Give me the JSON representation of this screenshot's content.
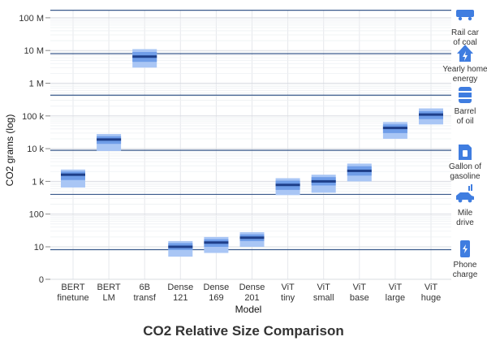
{
  "chart_data": {
    "type": "box",
    "title": "CO2 Relative Size Comparison",
    "xlabel": "Model",
    "ylabel": "CO2 grams (log)",
    "yscale": "log",
    "ylim": [
      0,
      200000000
    ],
    "yticks": [
      {
        "value": 0,
        "label": "0"
      },
      {
        "value": 10,
        "label": "10"
      },
      {
        "value": 100,
        "label": "100"
      },
      {
        "value": 1000,
        "label": "1 k"
      },
      {
        "value": 10000,
        "label": "10 k"
      },
      {
        "value": 100000,
        "label": "100 k"
      },
      {
        "value": 1000000,
        "label": "1 M"
      },
      {
        "value": 10000000,
        "label": "10 M"
      },
      {
        "value": 100000000,
        "label": "100 M"
      }
    ],
    "grid": true,
    "categories": [
      {
        "line1": "BERT",
        "line2": "finetune"
      },
      {
        "line1": "BERT",
        "line2": "LM"
      },
      {
        "line1": "6B",
        "line2": "transf"
      },
      {
        "line1": "Dense",
        "line2": "121"
      },
      {
        "line1": "Dense",
        "line2": "169"
      },
      {
        "line1": "Dense",
        "line2": "201"
      },
      {
        "line1": "ViT",
        "line2": "tiny"
      },
      {
        "line1": "ViT",
        "line2": "small"
      },
      {
        "line1": "ViT",
        "line2": "base"
      },
      {
        "line1": "ViT",
        "line2": "large"
      },
      {
        "line1": "ViT",
        "line2": "huge"
      }
    ],
    "boxes": [
      {
        "min": 650,
        "q1": 1100,
        "median": 1600,
        "q3": 2000,
        "max": 2300
      },
      {
        "min": 8500,
        "q1": 14000,
        "median": 19000,
        "q3": 24000,
        "max": 28000
      },
      {
        "min": 3000000,
        "q1": 4500000,
        "median": 6500000,
        "q3": 9000000,
        "max": 11000000
      },
      {
        "min": 5,
        "q1": 8,
        "median": 10,
        "q3": 13,
        "max": 15
      },
      {
        "min": 6.5,
        "q1": 10,
        "median": 13.5,
        "q3": 17,
        "max": 20
      },
      {
        "min": 10,
        "q1": 15,
        "median": 19,
        "q3": 24,
        "max": 28
      },
      {
        "min": 380,
        "q1": 550,
        "median": 780,
        "q3": 1050,
        "max": 1250
      },
      {
        "min": 450,
        "q1": 750,
        "median": 1000,
        "q3": 1350,
        "max": 1600
      },
      {
        "min": 1000,
        "q1": 1500,
        "median": 2100,
        "q3": 2900,
        "max": 3500
      },
      {
        "min": 20000,
        "q1": 30000,
        "median": 43000,
        "q3": 55000,
        "max": 65000
      },
      {
        "min": 55000,
        "q1": 80000,
        "median": 110000,
        "q3": 140000,
        "max": 170000
      }
    ],
    "reference_lines": [
      {
        "value": 170000000,
        "label1": "Rail car",
        "label2": "of coal",
        "icon": "rail-car-icon"
      },
      {
        "value": 8000000,
        "label1": "Yearly home",
        "label2": "energy",
        "icon": "home-icon"
      },
      {
        "value": 430000,
        "label1": "Barrel",
        "label2": "of oil",
        "icon": "barrel-icon"
      },
      {
        "value": 8900,
        "label1": "Gallon of",
        "label2": "gasoline",
        "icon": "gas-can-icon"
      },
      {
        "value": 400,
        "label1": "Mile",
        "label2": "drive",
        "icon": "car-icon"
      },
      {
        "value": 8.2,
        "label1": "Phone",
        "label2": "charge",
        "icon": "phone-icon"
      }
    ],
    "colors": {
      "box_outer": "#a9c6f5",
      "box_inner": "#6f9de8",
      "median": "#1e3f8a",
      "reference_line": "#3a5a8c",
      "grid": "#e6e8ec",
      "icon": "#3f7de0"
    }
  }
}
